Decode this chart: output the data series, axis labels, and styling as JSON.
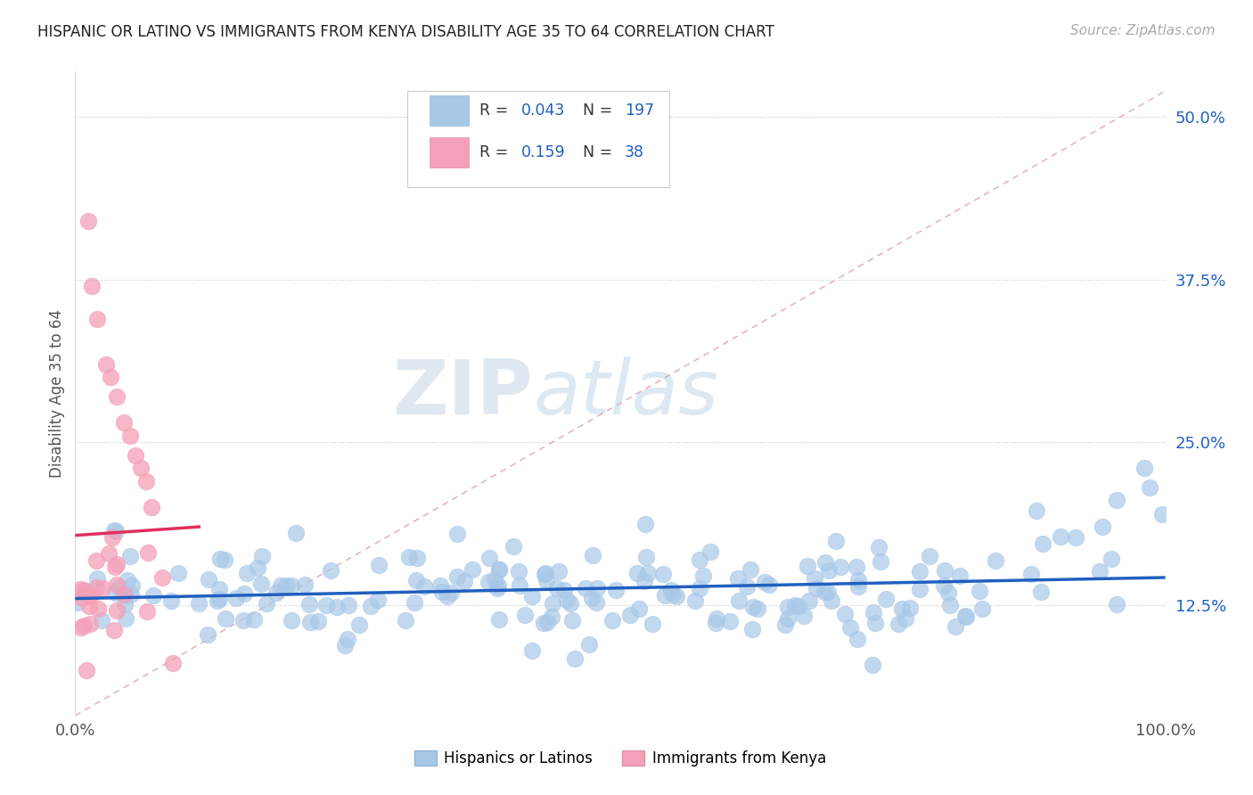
{
  "title": "HISPANIC OR LATINO VS IMMIGRANTS FROM KENYA DISABILITY AGE 35 TO 64 CORRELATION CHART",
  "source": "Source: ZipAtlas.com",
  "ylabel": "Disability Age 35 to 64",
  "xmin": 0.0,
  "xmax": 1.0,
  "ymin": 0.04,
  "ymax": 0.535,
  "yticks": [
    0.125,
    0.25,
    0.375,
    0.5
  ],
  "ytick_labels": [
    "12.5%",
    "25.0%",
    "37.5%",
    "50.0%"
  ],
  "xtick_labels": [
    "0.0%",
    "100.0%"
  ],
  "blue_R": 0.043,
  "blue_N": 197,
  "pink_R": 0.159,
  "pink_N": 38,
  "blue_color": "#a8c8e8",
  "pink_color": "#f4a0b8",
  "blue_line_color": "#2060c0",
  "pink_line_color": "#e03060",
  "legend_blue_label": "Hispanics or Latinos",
  "legend_pink_label": "Immigrants from Kenya",
  "watermark_zip": "ZIP",
  "watermark_atlas": "atlas"
}
